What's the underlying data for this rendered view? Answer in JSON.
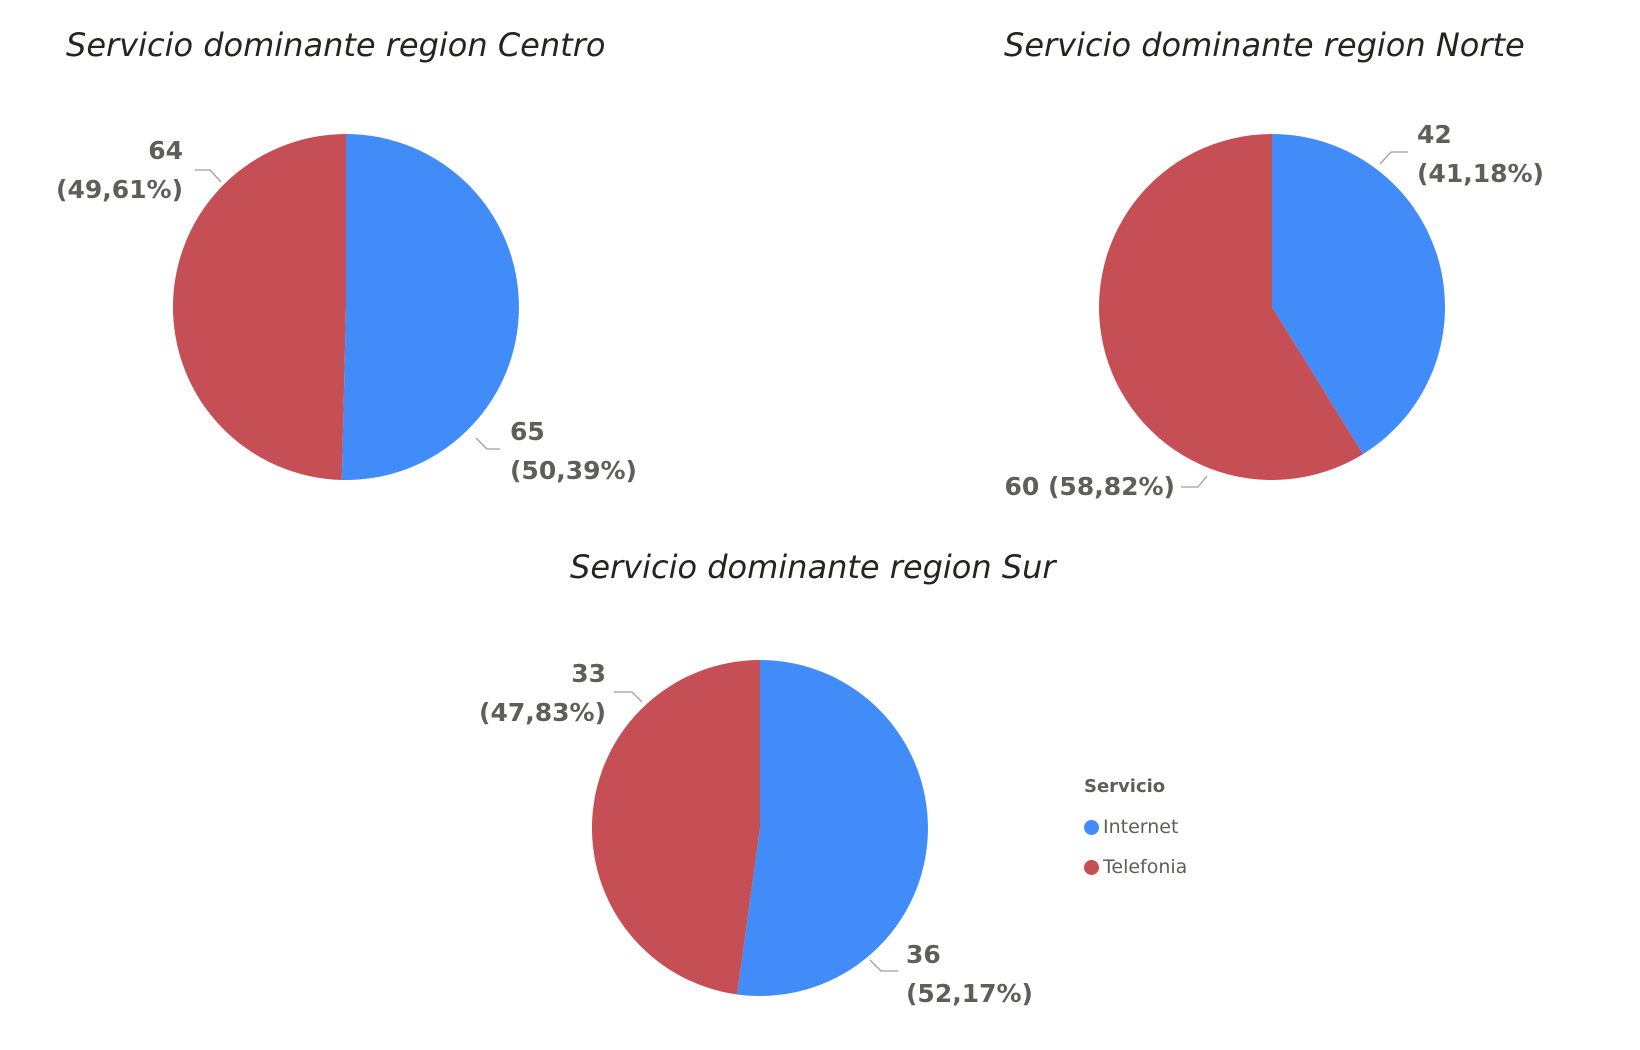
{
  "colors": {
    "Internet": "#418cf9",
    "Telefonia": "#c64f55"
  },
  "legend": {
    "title": "Servicio",
    "items": [
      "Internet",
      "Telefonia"
    ]
  },
  "chart_data": [
    {
      "type": "pie",
      "title": "Servicio dominante region Centro",
      "slices": [
        {
          "name": "Internet",
          "value": 65,
          "label": "65",
          "pct_label": "(50,39%)"
        },
        {
          "name": "Telefonia",
          "value": 64,
          "label": "64",
          "pct_label": "(49,61%)"
        }
      ]
    },
    {
      "type": "pie",
      "title": "Servicio dominante region Norte",
      "slices": [
        {
          "name": "Internet",
          "value": 42,
          "label": "42",
          "pct_label": "(41,18%)"
        },
        {
          "name": "Telefonia",
          "value": 60,
          "label": "60 (58,82%)",
          "pct_label": ""
        }
      ]
    },
    {
      "type": "pie",
      "title": "Servicio dominante region Sur",
      "slices": [
        {
          "name": "Internet",
          "value": 36,
          "label": "36",
          "pct_label": "(52,17%)"
        },
        {
          "name": "Telefonia",
          "value": 33,
          "label": "33",
          "pct_label": "(47,83%)"
        }
      ]
    }
  ]
}
